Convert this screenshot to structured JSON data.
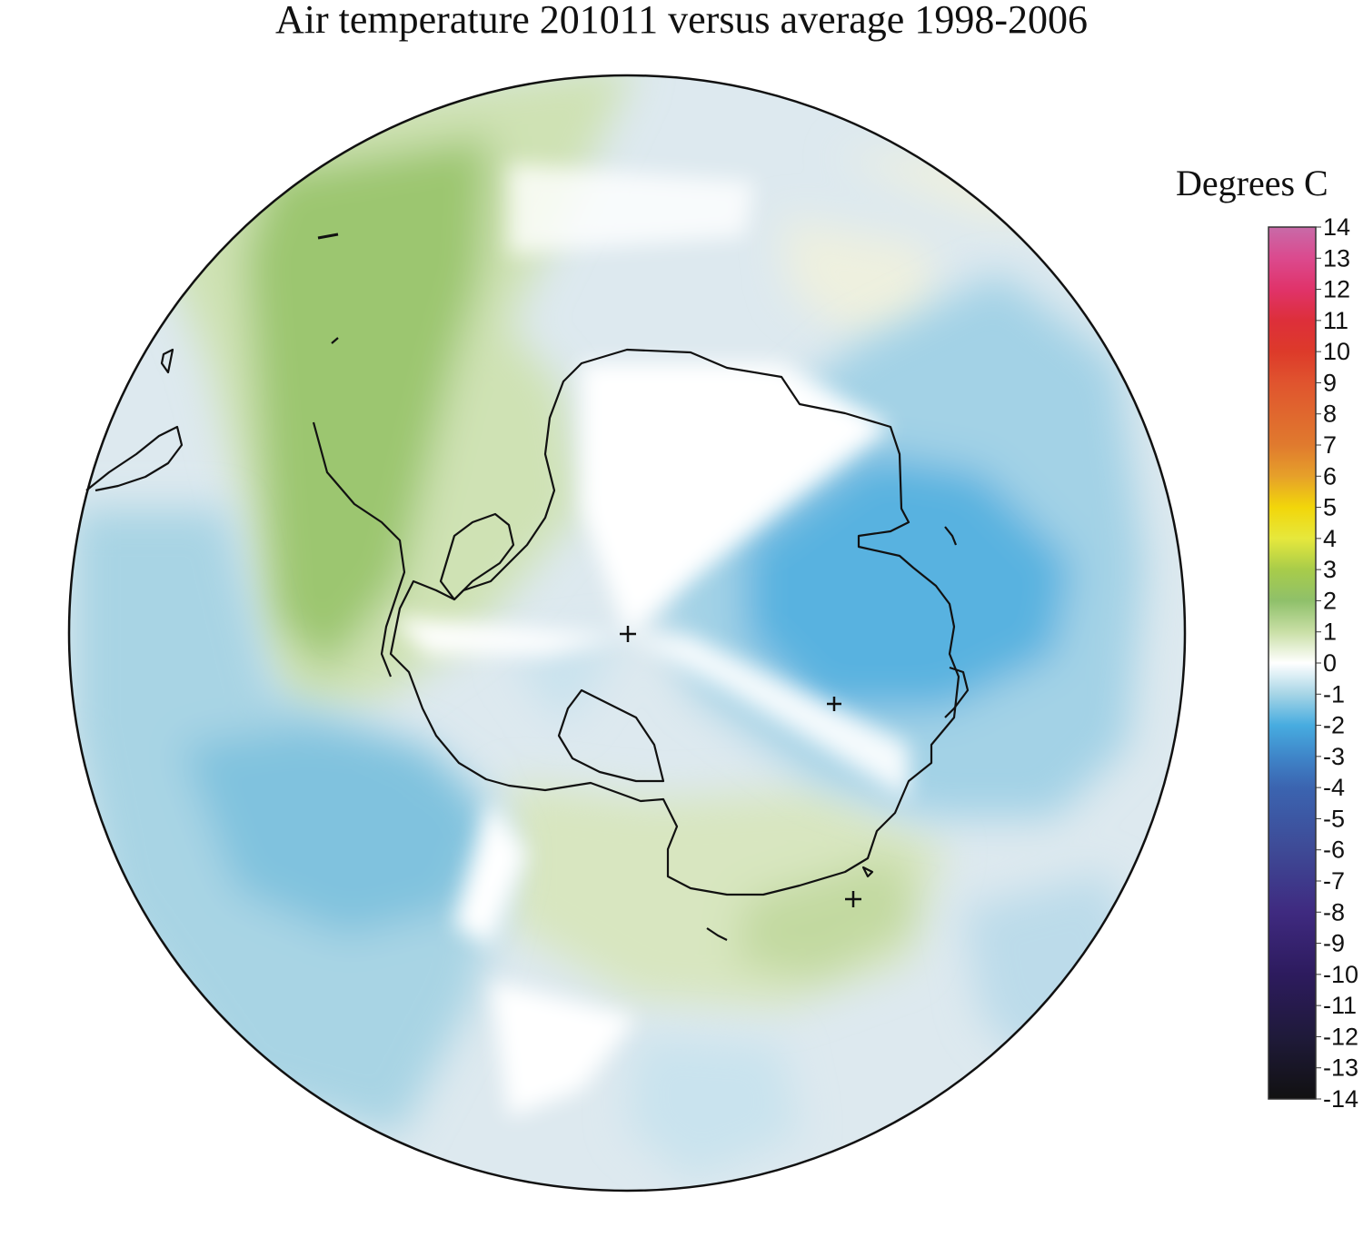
{
  "title": "Air temperature 201011 versus average 1998-2006",
  "legend": {
    "title": "Degrees C",
    "min": -14,
    "max": 14,
    "ticks": [
      "14",
      "13",
      "12",
      "11",
      "10",
      "9",
      "8",
      "7",
      "6",
      "5",
      "4",
      "3",
      "2",
      "1",
      "0",
      "-1",
      "-2",
      "-3",
      "-4",
      "-5",
      "-6",
      "-7",
      "-8",
      "-9",
      "-10",
      "-11",
      "-12",
      "-13",
      "-14"
    ],
    "colors": [
      {
        "value": -14,
        "color": "#111111"
      },
      {
        "value": -12,
        "color": "#1f1a3a"
      },
      {
        "value": -10,
        "color": "#2d1b5e"
      },
      {
        "value": -8,
        "color": "#3f2a80"
      },
      {
        "value": -6,
        "color": "#3e4a96"
      },
      {
        "value": -4,
        "color": "#3b64b0"
      },
      {
        "value": -3,
        "color": "#3f86c9"
      },
      {
        "value": -2,
        "color": "#47ace0"
      },
      {
        "value": -1,
        "color": "#a6d5e6"
      },
      {
        "value": 0,
        "color": "#ffffff"
      },
      {
        "value": 1,
        "color": "#c9dfa6"
      },
      {
        "value": 2,
        "color": "#8fc06a"
      },
      {
        "value": 3,
        "color": "#a8cc4a"
      },
      {
        "value": 4,
        "color": "#e6e83c"
      },
      {
        "value": 5,
        "color": "#f2d60a"
      },
      {
        "value": 6,
        "color": "#e6a02a"
      },
      {
        "value": 7,
        "color": "#e07a2e"
      },
      {
        "value": 9,
        "color": "#e0542e"
      },
      {
        "value": 10,
        "color": "#dd3a2a"
      },
      {
        "value": 11,
        "color": "#dd2f3a"
      },
      {
        "value": 12,
        "color": "#e0336a"
      },
      {
        "value": 13,
        "color": "#db4a8e"
      },
      {
        "value": 14,
        "color": "#c86aa8"
      }
    ]
  },
  "map": {
    "projection": "south-polar-stereographic",
    "regions": [
      {
        "name": "antarctic-peninsula-warm-anomaly",
        "anomaly_c": 2
      },
      {
        "name": "east-antarctica-indian-ocean-cold-anomaly",
        "anomaly_c": -2
      },
      {
        "name": "pacific-sector-cold-anomaly",
        "anomaly_c": -2
      },
      {
        "name": "ross-sea-warm-anomaly",
        "anomaly_c": 1
      }
    ]
  }
}
